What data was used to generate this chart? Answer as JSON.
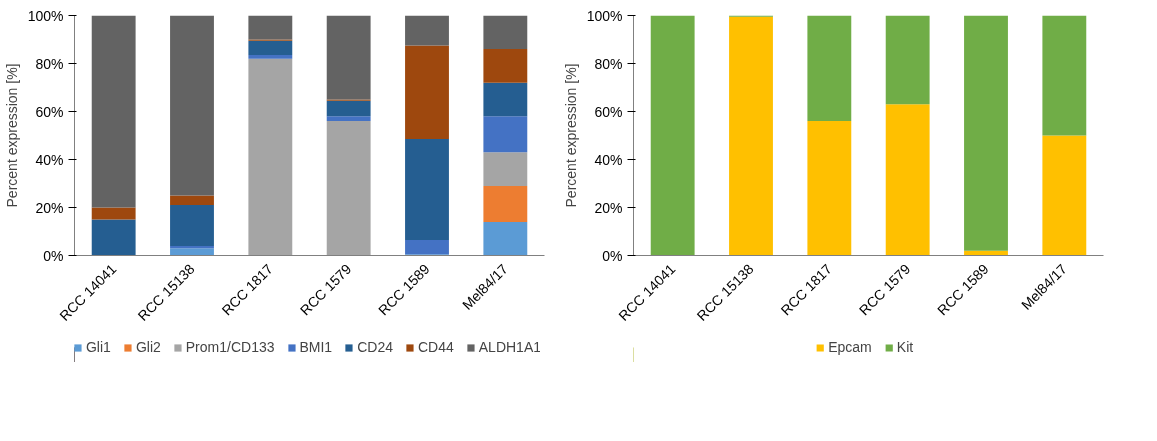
{
  "chart_data": [
    {
      "type": "bar",
      "stacked": true,
      "ylabel": "Percent expression [%]",
      "categories": [
        "RCC 14041",
        "RCC 15138",
        "RCC 1817",
        "RCC 1579",
        "RCC 1589",
        "Mel84/17"
      ],
      "series": [
        {
          "name": "Gli1",
          "color": "#5b9bd5",
          "values": [
            0,
            3,
            0,
            0,
            0.5,
            14
          ]
        },
        {
          "name": "Gli2",
          "color": "#ed7d31",
          "values": [
            0,
            0,
            0,
            0,
            0,
            15
          ]
        },
        {
          "name": "Prom1/CD133",
          "color": "#a5a5a5",
          "values": [
            0,
            0,
            82,
            56,
            0,
            14
          ]
        },
        {
          "name": "BMI1",
          "color": "#4472c4",
          "values": [
            0,
            1,
            1.5,
            2,
            6,
            15
          ]
        },
        {
          "name": "CD24",
          "color": "#255e91",
          "values": [
            15,
            17,
            6,
            6.5,
            42,
            14
          ]
        },
        {
          "name": "CD44",
          "color": "#9e480e",
          "values": [
            5,
            4,
            0.5,
            0.5,
            39,
            14
          ]
        },
        {
          "name": "ALDH1A1",
          "color": "#636363",
          "values": [
            80,
            75,
            10,
            35,
            12.5,
            14
          ]
        }
      ],
      "ylim": [
        0,
        100
      ],
      "yticks": [
        {
          "value": 0,
          "label": "0%"
        },
        {
          "value": 20,
          "label": "20%"
        },
        {
          "value": 40,
          "label": "40%"
        },
        {
          "value": 60,
          "label": "60%"
        },
        {
          "value": 80,
          "label": "80%"
        },
        {
          "value": 100,
          "label": "100%"
        }
      ],
      "legend": "bottom"
    },
    {
      "type": "bar",
      "stacked": true,
      "ylabel": "Percent expression [%]",
      "categories": [
        "RCC 14041",
        "RCC 15138",
        "RCC 1817",
        "RCC 1579",
        "RCC 1589",
        "Mel84/17"
      ],
      "series": [
        {
          "name": "Epcam",
          "color": "#ffc000",
          "values": [
            0,
            99.5,
            56,
            63,
            2,
            50
          ]
        },
        {
          "name": "Kit",
          "color": "#70ad47",
          "values": [
            100,
            0.5,
            44,
            37,
            98,
            50
          ]
        }
      ],
      "ylim": [
        0,
        100
      ],
      "yticks": [
        {
          "value": 0,
          "label": "0%"
        },
        {
          "value": 20,
          "label": "20%"
        },
        {
          "value": 40,
          "label": "40%"
        },
        {
          "value": 60,
          "label": "60%"
        },
        {
          "value": 80,
          "label": "80%"
        },
        {
          "value": 100,
          "label": "100%"
        }
      ],
      "legend": "bottom"
    }
  ]
}
